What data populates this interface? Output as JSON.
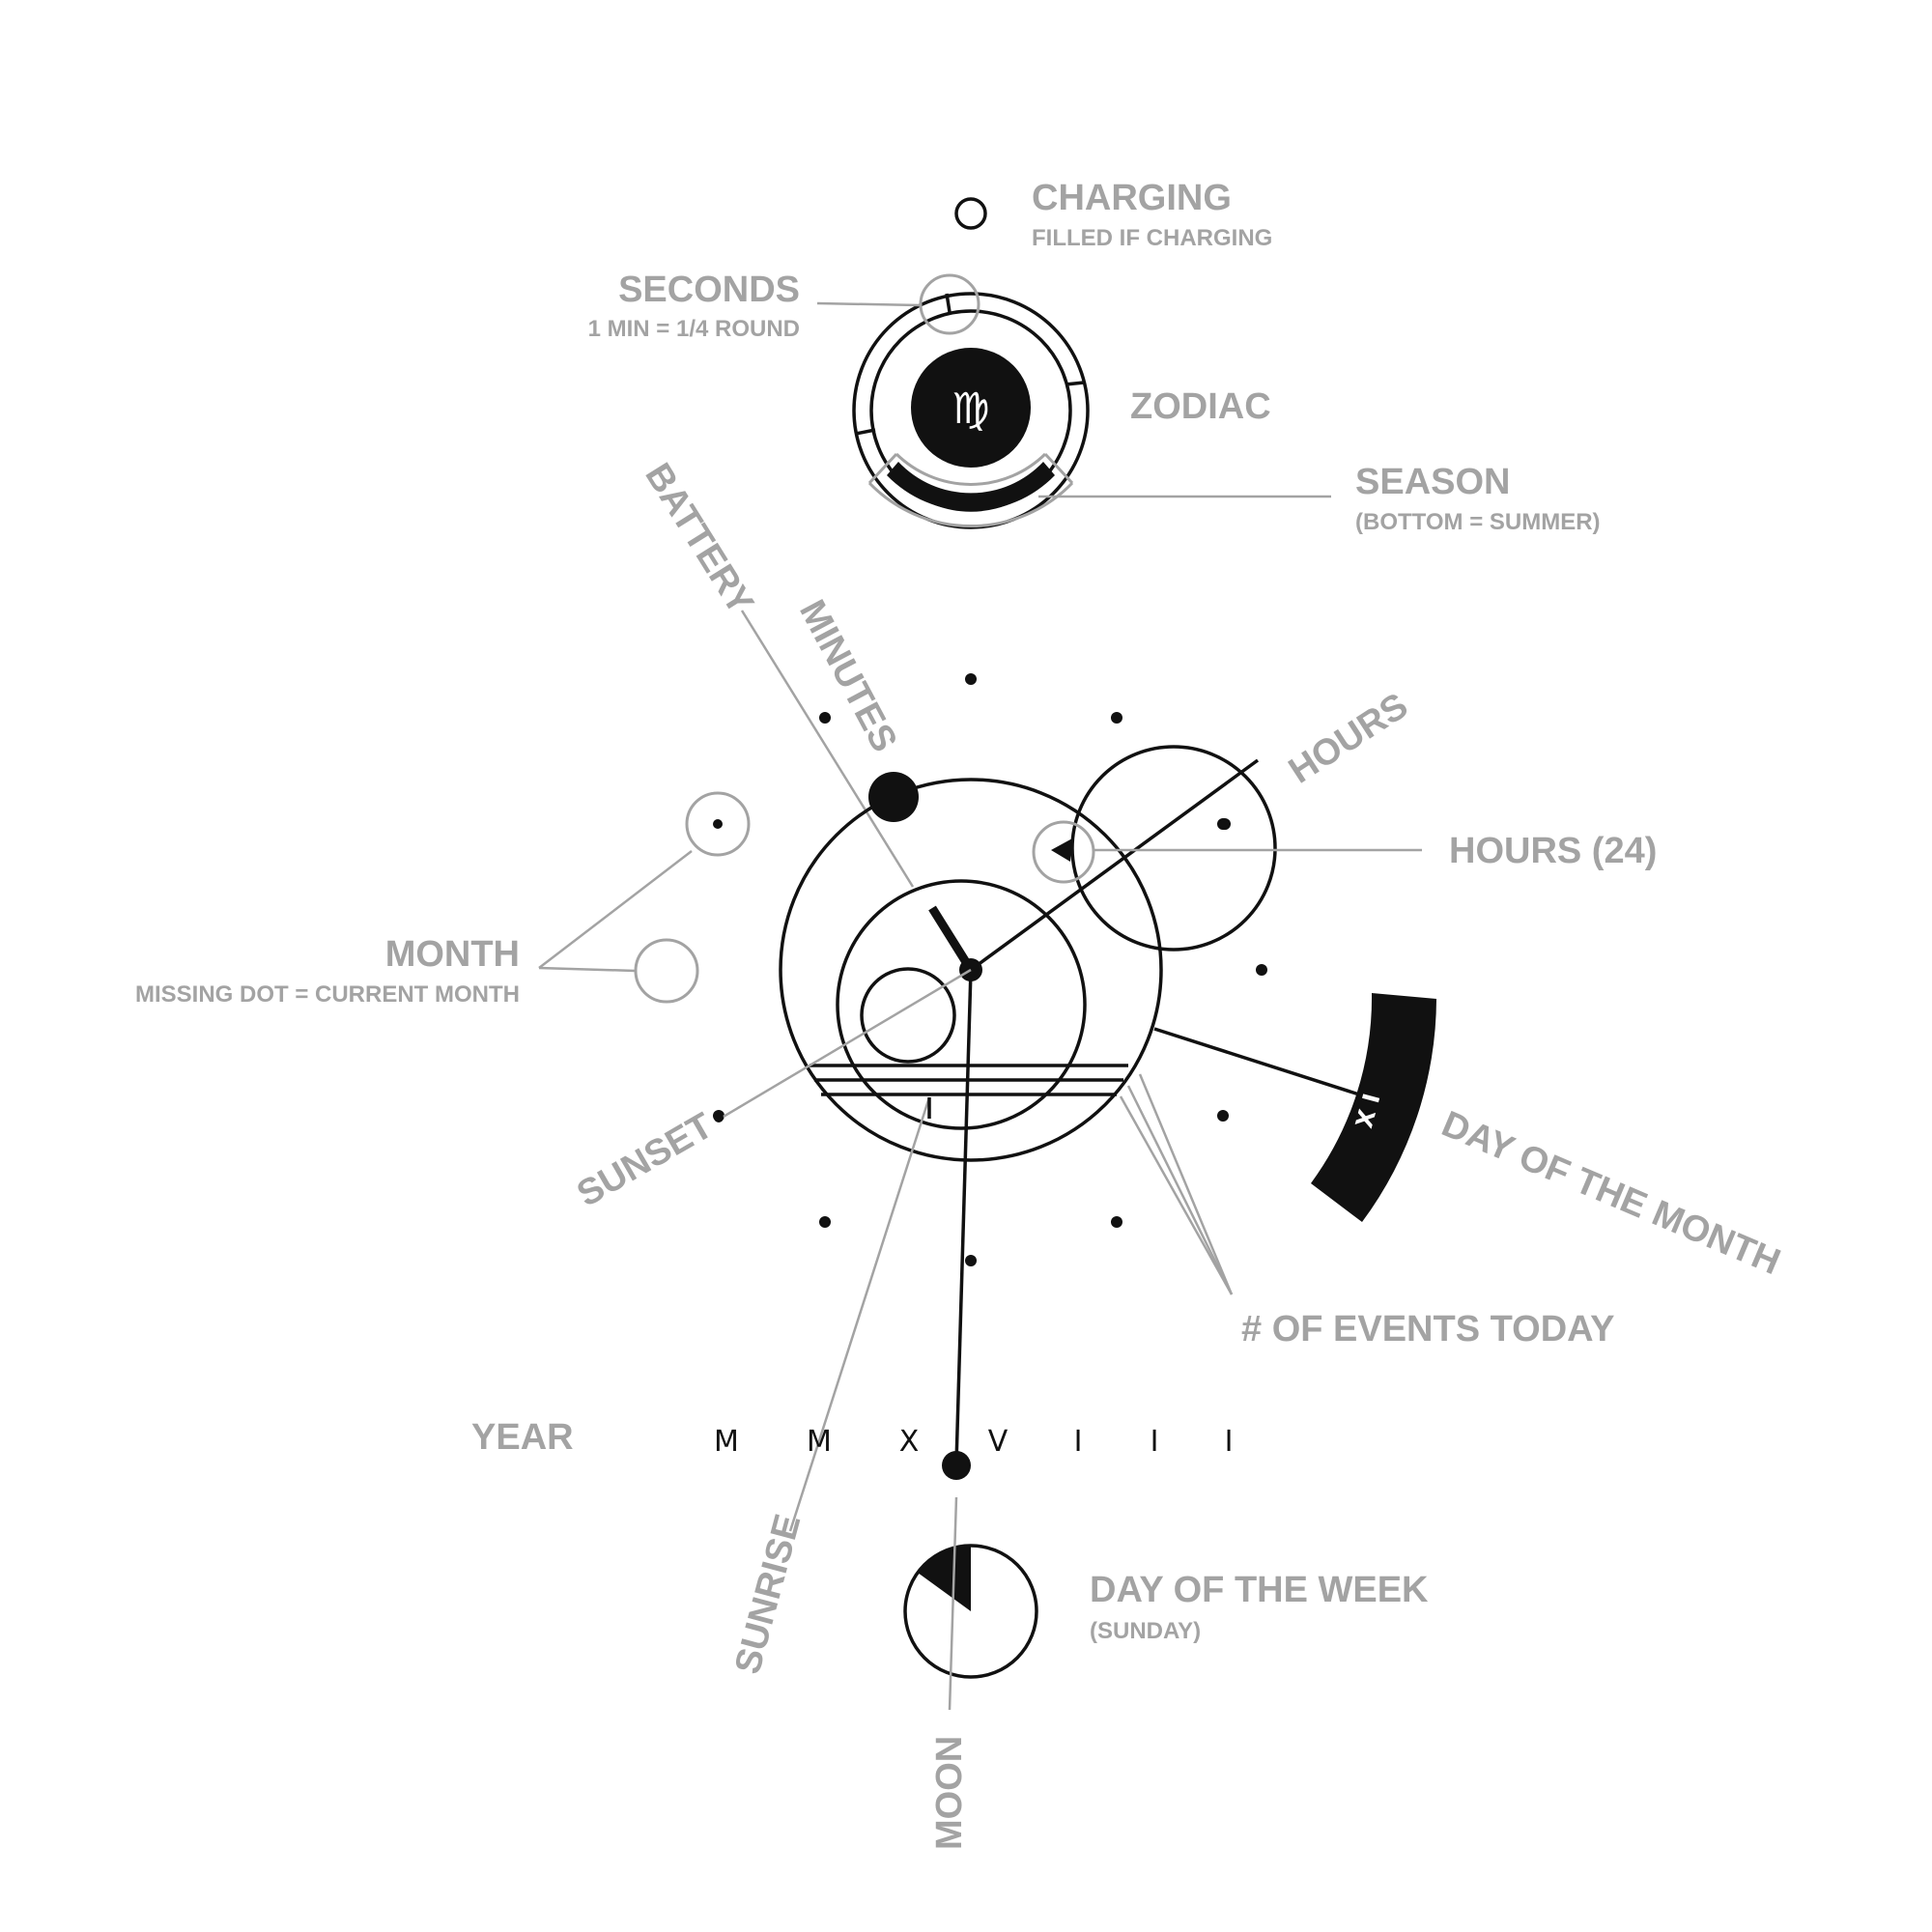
{
  "labels": {
    "charging": {
      "title": "CHARGING",
      "note": "FILLED IF CHARGING"
    },
    "seconds": {
      "title": "SECONDS",
      "note": "1 MIN = 1/4 ROUND"
    },
    "zodiac": {
      "title": "ZODIAC",
      "symbol": "♍"
    },
    "season": {
      "title": "SEASON",
      "note": "(BOTTOM = SUMMER)"
    },
    "battery": "BATTERY",
    "minutes": "MINUTES",
    "hours": "HOURS",
    "hours24": "HOURS (24)",
    "month": {
      "title": "MONTH",
      "note": "MISSING DOT = CURRENT MONTH"
    },
    "sunset": "SUNSET",
    "day_of_month": {
      "title": "DAY OF THE MONTH",
      "numeral": "X I"
    },
    "events": "# OF EVENTS TODAY",
    "year": {
      "title": "YEAR",
      "numerals": [
        "M",
        "M",
        "X",
        "V",
        "I",
        "I",
        "I"
      ]
    },
    "sunrise": "SUNRISE",
    "day_of_week": {
      "title": "DAY OF THE WEEK",
      "note": "(SUNDAY)"
    },
    "moon": "MOON"
  },
  "colors": {
    "ink": "#111111",
    "annotation": "#a3a3a3",
    "background": "#ffffff"
  }
}
